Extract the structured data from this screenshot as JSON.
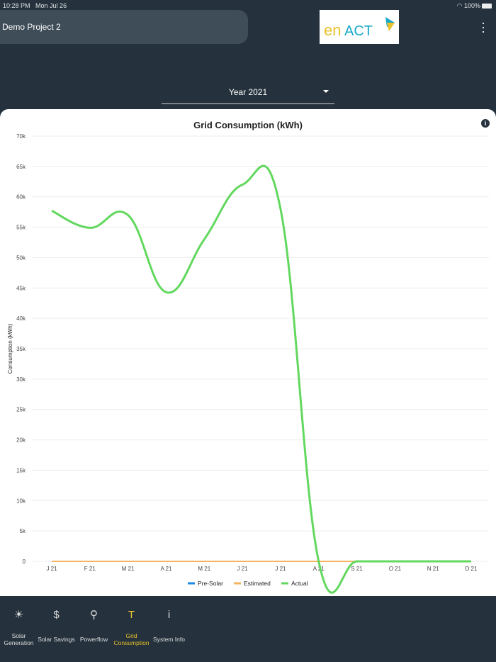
{
  "status": {
    "time": "10:28 PM",
    "date": "Mon Jul 26",
    "battery": "100%"
  },
  "header": {
    "project": "Demo Project 2",
    "logo_text": "enACT"
  },
  "selector": {
    "value": "Year 2021"
  },
  "chart_data": {
    "type": "line",
    "title": "Grid Consumption (kWh)",
    "ylabel": "Consumption (kWh)",
    "ylim": [
      0,
      70000
    ],
    "yticks": [
      "0",
      "5k",
      "10k",
      "15k",
      "20k",
      "25k",
      "30k",
      "35k",
      "40k",
      "45k",
      "50k",
      "55k",
      "60k",
      "65k",
      "70k"
    ],
    "categories": [
      "J 21",
      "F 21",
      "M 21",
      "A 21",
      "M 21",
      "J 21",
      "J 21",
      "A 21",
      "S 21",
      "O 21",
      "N 21",
      "D 21"
    ],
    "series": [
      {
        "name": "Pre-Solar",
        "color": "#1e88e5",
        "values": [
          0,
          0,
          0,
          0,
          0,
          0,
          0,
          0,
          0,
          0,
          0,
          0
        ]
      },
      {
        "name": "Estimated",
        "color": "#f5b461",
        "values": [
          0,
          0,
          0,
          0,
          0,
          0,
          0,
          0,
          0,
          0,
          0,
          0
        ]
      },
      {
        "name": "Actual",
        "color": "#63d85f",
        "values": [
          57700,
          54900,
          57000,
          44300,
          53000,
          62000,
          58000,
          0,
          0,
          0,
          0,
          0
        ]
      }
    ],
    "legend": "bottom"
  },
  "nav": [
    {
      "label": "Solar Generation",
      "icon": "☀"
    },
    {
      "label": "Solar Savings",
      "icon": "$"
    },
    {
      "label": "Powerflow",
      "icon": "⚲"
    },
    {
      "label": "Grid Consumption",
      "icon": "T"
    },
    {
      "label": "System Info",
      "icon": "i"
    }
  ]
}
